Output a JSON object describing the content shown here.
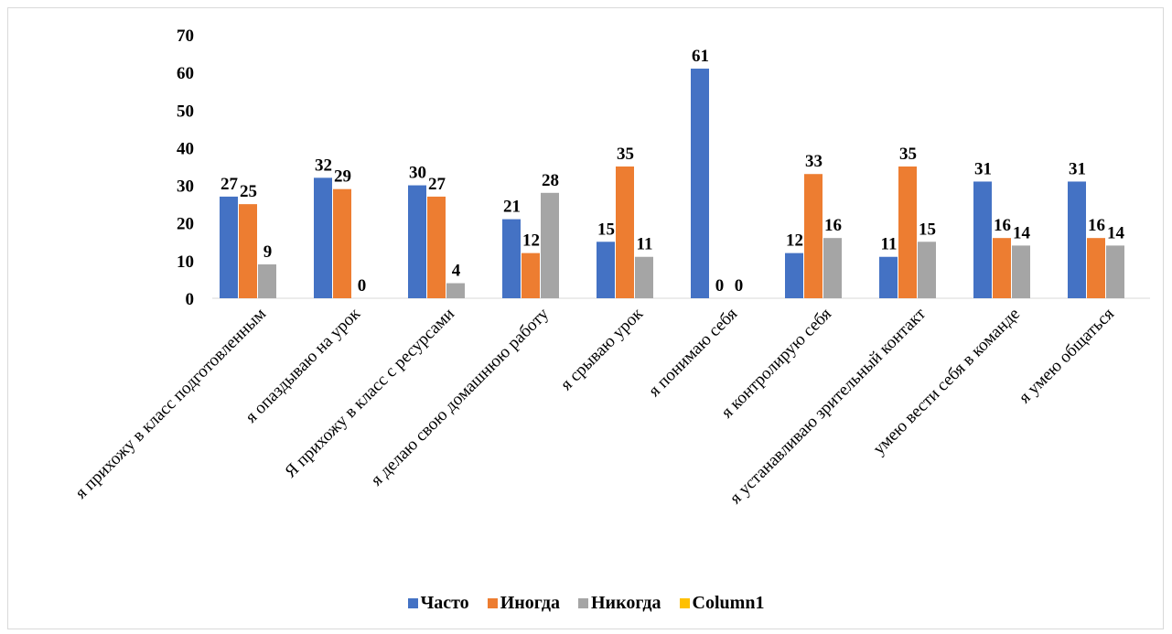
{
  "chart_data": {
    "type": "bar",
    "categories": [
      "я прихожу в класс подготовленным",
      "я опаздываю на урок",
      "Я прихожу в класс с ресурсами",
      "я делаю свою домашнюю работу",
      "я срываю урок",
      "я понимаю себя",
      "я контролирую себя",
      "я устанавливаю зрительный контакт",
      "умею вести себя в команде",
      "я умею общаться"
    ],
    "series": [
      {
        "name": "Часто",
        "color": "#4472c4",
        "values": [
          27,
          32,
          30,
          21,
          15,
          61,
          12,
          11,
          31,
          31
        ]
      },
      {
        "name": "Иногда",
        "color": "#ed7d31",
        "values": [
          25,
          29,
          27,
          12,
          35,
          0,
          33,
          35,
          16,
          16
        ]
      },
      {
        "name": "Никогда",
        "color": "#a5a5a5",
        "values": [
          9,
          0,
          4,
          28,
          11,
          0,
          16,
          15,
          14,
          14
        ]
      },
      {
        "name": "Column1",
        "color": "#ffc000",
        "values": [
          0,
          0,
          0,
          0,
          0,
          0,
          0,
          0,
          0,
          0
        ]
      }
    ],
    "yticks": [
      "0",
      "10",
      "20",
      "30",
      "40",
      "50",
      "60",
      "70"
    ],
    "ylim": [
      0,
      70
    ],
    "grid": false,
    "legend": "bottom"
  }
}
